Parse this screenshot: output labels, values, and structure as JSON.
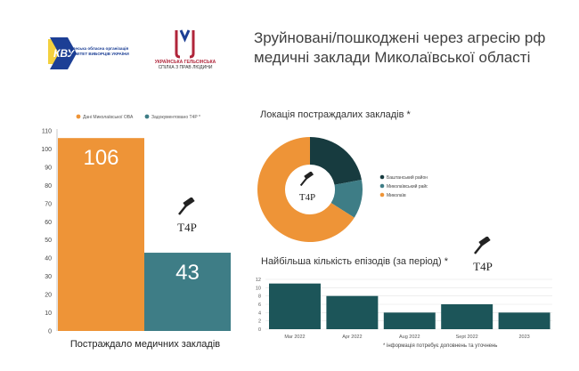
{
  "header": {
    "title_line1": "Зруйновані/пошкоджені через агресію рф",
    "title_line2": "медичні заклади Миколаївської області",
    "logo1_lines": [
      "Одеська обласна організація",
      "КОМІТЕТ ВИБОРЦІВ УКРАЇНИ"
    ],
    "logo2_lines": [
      "УКРАЇНСЬКА ГЕЛЬСІНСЬКА",
      "СПІЛКА З ПРАВ ЛЮДИНИ"
    ],
    "t4p_label": "T4P"
  },
  "colors": {
    "orange": "#EE9437",
    "teal": "#3E7D86",
    "dark_teal": "#173B3F",
    "bar2": "#1C5559",
    "logo_blue": "#1C3F95",
    "logo_red": "#B0253A",
    "logo_yellow": "#F3D03E"
  },
  "chart_data": [
    {
      "type": "bar",
      "categories": [
        "Дані Миколаївської ОВА",
        "Задокументовано T4P *"
      ],
      "values": [
        106,
        43
      ],
      "legend": [
        "Дані Миколаївської ОВА",
        "Задокументовано T4P *"
      ],
      "xlabel": "Постраждало медичних закладів",
      "ylim": [
        0,
        110
      ],
      "yticks": [
        0,
        10,
        20,
        30,
        40,
        50,
        60,
        70,
        80,
        90,
        100,
        110
      ],
      "grid": false
    },
    {
      "type": "pie",
      "title": "Локація постраждалих закладів *",
      "labels": [
        "Баштанський район",
        "Миколаївський район",
        "Миколаїв"
      ],
      "values": [
        22,
        12,
        66
      ],
      "donut": true,
      "legend_position": "right"
    },
    {
      "type": "bar",
      "title": "Найбільша кількість епізодів (за період) *",
      "categories": [
        "Mar 2022",
        "Apr 2022",
        "Aug 2022",
        "Sept 2022",
        "2023"
      ],
      "values": [
        11,
        8,
        4,
        6,
        4
      ],
      "ylim": [
        0,
        12
      ],
      "yticks": [
        0,
        2,
        4,
        6,
        8,
        10,
        12
      ],
      "grid": true
    }
  ],
  "footnote": "* інформація потребує доповнень та уточнень"
}
